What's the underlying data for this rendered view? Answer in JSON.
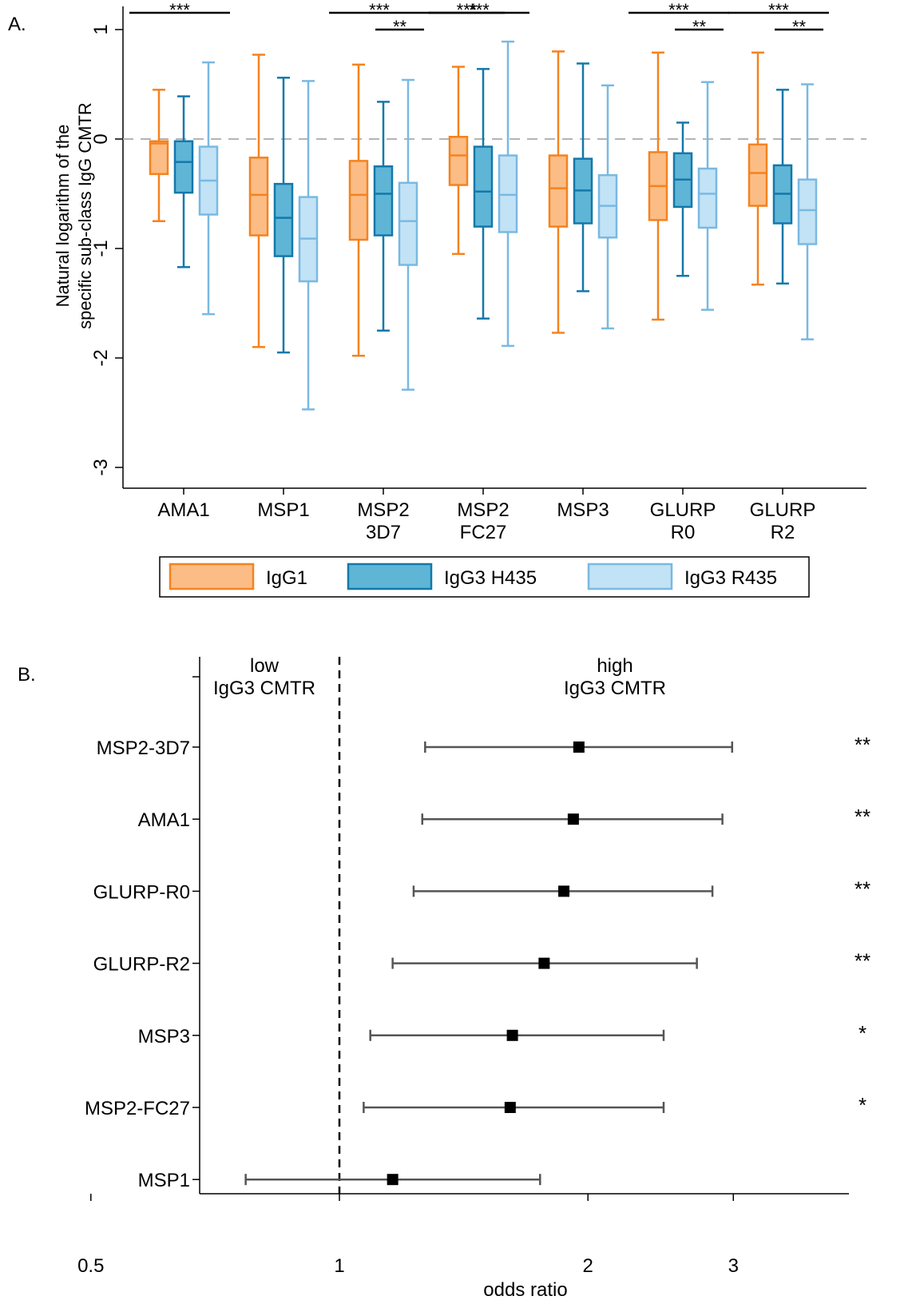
{
  "chart_data": [
    {
      "panel_label": "A.",
      "type": "box",
      "ylabel": [
        "Natural logarithm of the",
        "specific sub-class IgG CMTR"
      ],
      "ylim": [
        -3.2,
        1.2
      ],
      "yticks": [
        1,
        0,
        -1,
        -2,
        -3
      ],
      "yticklabels": [
        "1",
        "0",
        "-1",
        "-2",
        "-3"
      ],
      "reference_line": 0,
      "categories": [
        {
          "label": [
            "AMA1"
          ]
        },
        {
          "label": [
            "MSP1"
          ]
        },
        {
          "label": [
            "MSP2",
            "3D7"
          ]
        },
        {
          "label": [
            "MSP2",
            "FC27"
          ]
        },
        {
          "label": [
            "MSP3"
          ]
        },
        {
          "label": [
            "GLURP",
            "R0"
          ]
        },
        {
          "label": [
            "GLURP",
            "R2"
          ]
        }
      ],
      "series": [
        {
          "name": "IgG1",
          "fill": "#fbbd85",
          "stroke": "#f5821f",
          "median_color": "#f5821f",
          "boxes": [
            {
              "min": -0.75,
              "q1": -0.32,
              "median": -0.04,
              "q3": -0.02,
              "max": 0.45
            },
            {
              "min": -1.9,
              "q1": -0.88,
              "median": -0.51,
              "q3": -0.17,
              "max": 0.77
            },
            {
              "min": -1.98,
              "q1": -0.92,
              "median": -0.51,
              "q3": -0.2,
              "max": 0.68
            },
            {
              "min": -1.05,
              "q1": -0.42,
              "median": -0.15,
              "q3": 0.02,
              "max": 0.66
            },
            {
              "min": -1.77,
              "q1": -0.8,
              "median": -0.45,
              "q3": -0.15,
              "max": 0.8
            },
            {
              "min": -1.65,
              "q1": -0.74,
              "median": -0.43,
              "q3": -0.12,
              "max": 0.79
            },
            {
              "min": -1.33,
              "q1": -0.61,
              "median": -0.31,
              "q3": -0.05,
              "max": 0.79
            }
          ]
        },
        {
          "name": "IgG3 H435",
          "fill": "#5eb5d6",
          "stroke": "#1478aa",
          "median_color": "#1478aa",
          "boxes": [
            {
              "min": -1.17,
              "q1": -0.49,
              "median": -0.21,
              "q3": -0.02,
              "max": 0.39
            },
            {
              "min": -1.95,
              "q1": -1.07,
              "median": -0.72,
              "q3": -0.41,
              "max": 0.56
            },
            {
              "min": -1.75,
              "q1": -0.88,
              "median": -0.5,
              "q3": -0.25,
              "max": 0.34
            },
            {
              "min": -1.64,
              "q1": -0.8,
              "median": -0.48,
              "q3": -0.07,
              "max": 0.64
            },
            {
              "min": -1.39,
              "q1": -0.77,
              "median": -0.47,
              "q3": -0.18,
              "max": 0.69
            },
            {
              "min": -1.25,
              "q1": -0.62,
              "median": -0.37,
              "q3": -0.13,
              "max": 0.15
            },
            {
              "min": -1.32,
              "q1": -0.77,
              "median": -0.5,
              "q3": -0.24,
              "max": 0.45
            }
          ]
        },
        {
          "name": "IgG3 R435",
          "fill": "#c2e2f5",
          "stroke": "#79b9e2",
          "median_color": "#79b9e2",
          "boxes": [
            {
              "min": -1.6,
              "q1": -0.69,
              "median": -0.38,
              "q3": -0.07,
              "max": 0.7
            },
            {
              "min": -2.47,
              "q1": -1.3,
              "median": -0.91,
              "q3": -0.53,
              "max": 0.53
            },
            {
              "min": -2.29,
              "q1": -1.15,
              "median": -0.75,
              "q3": -0.4,
              "max": 0.54
            },
            {
              "min": -1.89,
              "q1": -0.85,
              "median": -0.51,
              "q3": -0.15,
              "max": 0.89
            },
            {
              "min": -1.73,
              "q1": -0.9,
              "median": -0.61,
              "q3": -0.33,
              "max": 0.49
            },
            {
              "min": -1.56,
              "q1": -0.81,
              "median": -0.5,
              "q3": -0.27,
              "max": 0.52
            },
            {
              "min": -1.83,
              "q1": -0.96,
              "median": -0.65,
              "q3": -0.37,
              "max": 0.5
            }
          ]
        }
      ],
      "significance": [
        {
          "category": 0,
          "from": 0,
          "to": 2,
          "label": "***"
        },
        {
          "category": 2,
          "from": 0,
          "to": 2,
          "label": "***"
        },
        {
          "category": 2,
          "from": 1,
          "to": 2,
          "label": "**"
        },
        {
          "category": 3,
          "from": 0,
          "to": 2,
          "label": "***"
        },
        {
          "category": 3,
          "from": 0,
          "to": 1,
          "label": "***"
        },
        {
          "category": 5,
          "from": 0,
          "to": 2,
          "label": "***"
        },
        {
          "category": 5,
          "from": 1,
          "to": 2,
          "label": "**"
        },
        {
          "category": 6,
          "from": 0,
          "to": 2,
          "label": "***"
        },
        {
          "category": 6,
          "from": 1,
          "to": 2,
          "label": "**"
        }
      ],
      "legend": [
        "IgG1",
        "IgG3 H435",
        "IgG3 R435"
      ],
      "legend_position": "bottom"
    },
    {
      "panel_label": "B.",
      "type": "forest",
      "xlabel": "odds ratio",
      "xscale": "log",
      "xlim": [
        0.43,
        3.05
      ],
      "xticks": [
        0.5,
        1,
        2,
        3
      ],
      "xticklabels": [
        "0.5",
        "1",
        "2",
        "3"
      ],
      "reference_line": 1,
      "region_labels": {
        "low": [
          "low",
          "IgG3 CMTR"
        ],
        "high": [
          "high",
          "IgG3 CMTR"
        ]
      },
      "rows": [
        {
          "label": "MSP2-3D7",
          "or": 1.95,
          "lo": 1.27,
          "hi": 2.99,
          "sig": "**"
        },
        {
          "label": "AMA1",
          "or": 1.92,
          "lo": 1.26,
          "hi": 2.91,
          "sig": "**"
        },
        {
          "label": "GLURP-R0",
          "or": 1.87,
          "lo": 1.23,
          "hi": 2.83,
          "sig": "**"
        },
        {
          "label": "GLURP-R2",
          "or": 1.77,
          "lo": 1.16,
          "hi": 2.71,
          "sig": "**"
        },
        {
          "label": "MSP3",
          "or": 1.62,
          "lo": 1.09,
          "hi": 2.47,
          "sig": "*"
        },
        {
          "label": "MSP2-FC27",
          "or": 1.61,
          "lo": 1.07,
          "hi": 2.47,
          "sig": "*"
        },
        {
          "label": "MSP1",
          "or": 1.16,
          "lo": 0.77,
          "hi": 1.75,
          "sig": ""
        }
      ]
    }
  ]
}
